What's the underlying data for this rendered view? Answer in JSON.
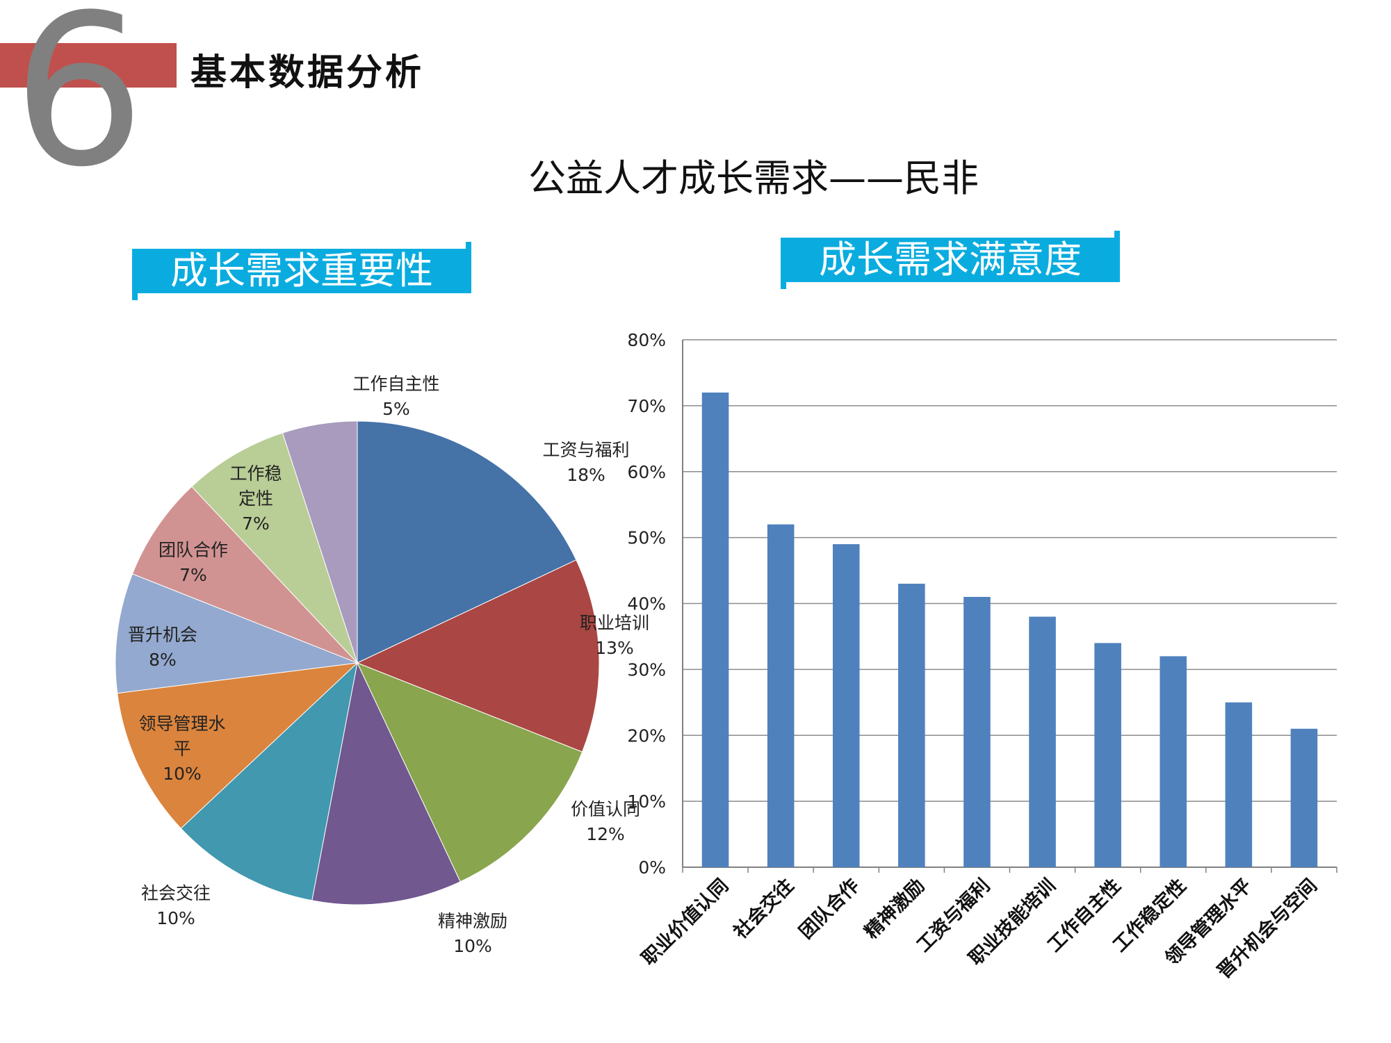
{
  "header": {
    "section_number": "6",
    "section_title": "基本数据分析",
    "main_title": "公益人才成长需求——民非"
  },
  "colors": {
    "accent_red": "#c0504d",
    "tag_blue": "#0aacdf",
    "bar_blue": "#4f81bd"
  },
  "chart_data": [
    {
      "type": "pie",
      "title": "成长需求重要性",
      "slices": [
        {
          "name": "工资与福利",
          "value": 18,
          "label": "18%",
          "color": "#4572a7"
        },
        {
          "name": "职业培训",
          "value": 13,
          "label": "13%",
          "color": "#aa4643"
        },
        {
          "name": "价值认同",
          "value": 12,
          "label": "12%",
          "color": "#89a54e"
        },
        {
          "name": "精神激励",
          "value": 10,
          "label": "10%",
          "color": "#71588f"
        },
        {
          "name": "社会交往",
          "value": 10,
          "label": "10%",
          "color": "#4198af"
        },
        {
          "name": "领导管理水平",
          "display_lines": [
            "领导管理水",
            "平"
          ],
          "value": 10,
          "label": "10%",
          "color": "#db843d"
        },
        {
          "name": "晋升机会",
          "value": 8,
          "label": "8%",
          "color": "#93a9cf"
        },
        {
          "name": "团队合作",
          "value": 7,
          "label": "7%",
          "color": "#d19392"
        },
        {
          "name": "工作稳定性",
          "display_lines": [
            "工作稳",
            "定性"
          ],
          "value": 7,
          "label": "7%",
          "color": "#b9cd96"
        },
        {
          "name": "工作自主性",
          "value": 5,
          "label": "5%",
          "color": "#a99bbd"
        }
      ]
    },
    {
      "type": "bar",
      "title": "成长需求满意度",
      "categories": [
        "职业价值认同",
        "社会交往",
        "团队合作",
        "精神激励",
        "工资与福利",
        "职业技能培训",
        "工作自主性",
        "工作稳定性",
        "领导管理水平",
        "晋升机会与空间"
      ],
      "values": [
        72,
        52,
        49,
        43,
        41,
        38,
        34,
        32,
        25,
        21
      ],
      "ylim": [
        0,
        80
      ],
      "yticks": [
        0,
        10,
        20,
        30,
        40,
        50,
        60,
        70,
        80
      ],
      "ytick_labels": [
        "0%",
        "10%",
        "20%",
        "30%",
        "40%",
        "50%",
        "60%",
        "70%",
        "80%"
      ],
      "grid": true
    }
  ]
}
